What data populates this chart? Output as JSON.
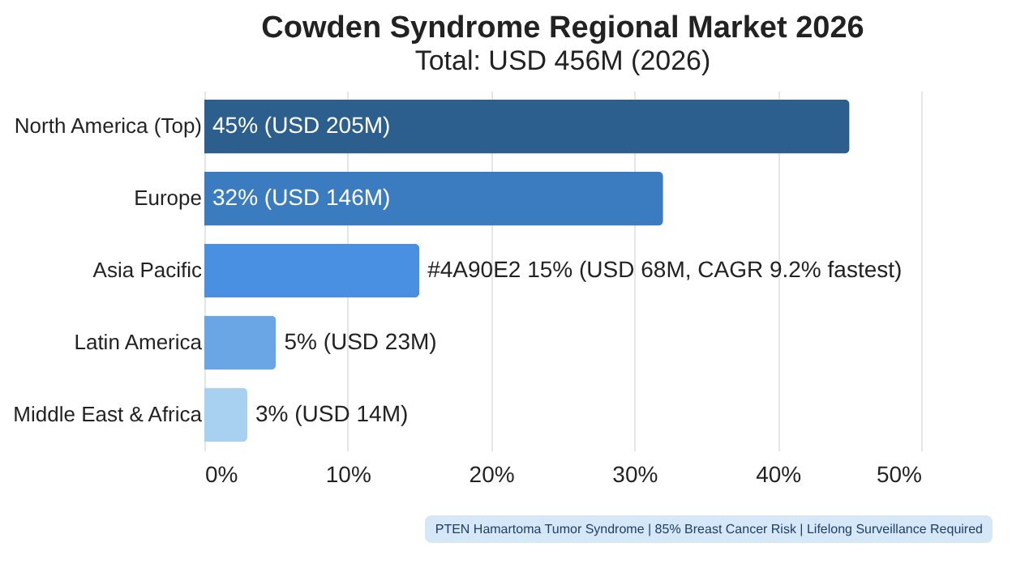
{
  "chart_data": {
    "type": "bar",
    "orientation": "horizontal",
    "title": "Cowden Syndrome Regional Market 2026",
    "subtitle": "Total: USD 456M (2026)",
    "categories": [
      "North America (Top)",
      "Europe",
      "Asia Pacific",
      "Latin America",
      "Middle East & Africa"
    ],
    "values": [
      45,
      32,
      15,
      5,
      3
    ],
    "colors": [
      "#2c5f8e",
      "#3b7bbf",
      "#4a90e2",
      "#6aa5e6",
      "#a8d0f0"
    ],
    "value_labels": [
      "45% (USD 205M)",
      "32% (USD 146M)",
      "#4A90E2  15% (USD 68M, CAGR 9.2% fastest)",
      "5% (USD 23M)",
      "3% (USD 14M)"
    ],
    "xlim": [
      0,
      50
    ],
    "xticks": [
      {
        "value": 0,
        "label": "0%"
      },
      {
        "value": 10,
        "label": "10%"
      },
      {
        "value": 20,
        "label": "20%"
      },
      {
        "value": 30,
        "label": "30%"
      },
      {
        "value": 40,
        "label": "40%"
      },
      {
        "value": 50,
        "label": "50%"
      }
    ],
    "grid": "x",
    "annotations": [
      "PTEN Hamartoma Tumor Syndrome | 85% Breast Cancer Risk | Lifelong Surveillance Required"
    ]
  }
}
